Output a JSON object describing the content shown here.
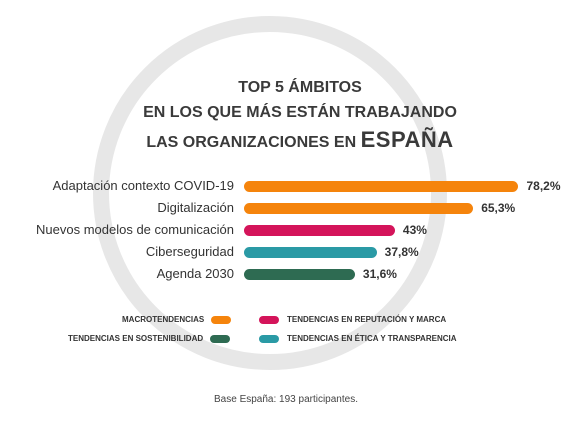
{
  "title": {
    "line1": "TOP 5 ÁMBITOS",
    "line2": "EN LOS QUE MÁS ESTÁN TRABAJANDO",
    "line3_prefix": "LAS ORGANIZACIONES EN",
    "line3_emphasis": "ESPAÑA"
  },
  "colors": {
    "macrotendencias": "#f5840c",
    "reputacion_marca": "#d4145a",
    "sostenibilidad": "#2e6b52",
    "etica_transparencia": "#2a9aa5",
    "ring": "#e7e7e7"
  },
  "chart_data": {
    "type": "bar",
    "orientation": "horizontal",
    "categories": [
      "Adaptación contexto COVID-19",
      "Digitalización",
      "Nuevos modelos de comunicación",
      "Ciberseguridad",
      "Agenda 2030"
    ],
    "values": [
      78.2,
      65.3,
      43,
      37.8,
      31.6
    ],
    "value_labels": [
      "78,2%",
      "65,3%",
      "43%",
      "37,8%",
      "31,6%"
    ],
    "bar_colors": [
      "#f5840c",
      "#f5840c",
      "#d4145a",
      "#2a9aa5",
      "#2e6b52"
    ],
    "xlim": [
      0,
      100
    ],
    "grid": false,
    "legend_placement": "bottom"
  },
  "legend": [
    {
      "label": "MACROTENDENCIAS",
      "color": "#f5840c"
    },
    {
      "label": "TENDENCIAS EN REPUTACIÓN Y MARCA",
      "color": "#d4145a"
    },
    {
      "label": "TENDENCIAS EN SOSTENIBILIDAD",
      "color": "#2e6b52"
    },
    {
      "label": "TENDENCIAS EN ÉTICA Y TRANSPARENCIA",
      "color": "#2a9aa5"
    }
  ],
  "footnote": "Base España: 193 participantes."
}
